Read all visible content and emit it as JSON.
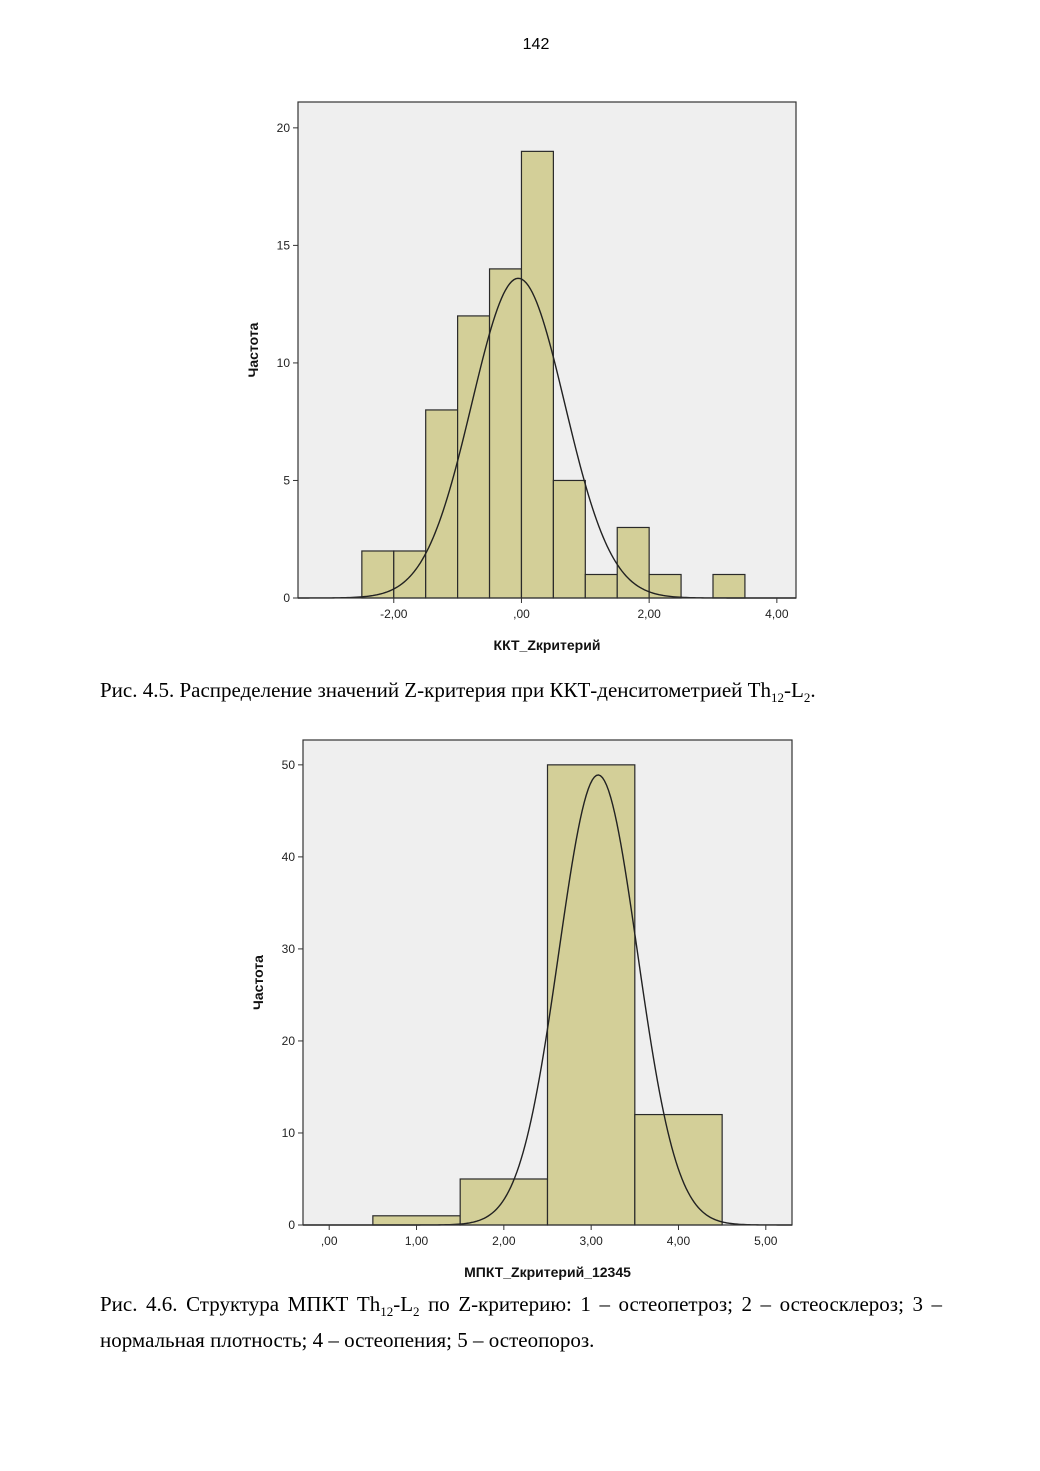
{
  "page_number": "142",
  "captions": {
    "fig45_prefix": "Рис. 4.5. Распределение значений Z-критерия при ККТ-денситометрией Th",
    "fig45_sub1": "12",
    "fig45_mid": "-L",
    "fig45_sub2": "2",
    "fig45_suffix": ".",
    "fig46_prefix": "Рис. 4.6. Структура МПКТ Th",
    "fig46_sub1": "12",
    "fig46_mid": "-L",
    "fig46_sub2": "2",
    "fig46_suffix": " по Z-критерию: 1 – остеопетроз; 2 – остеосклероз; 3 – нормальная плотность; 4 – остеопения; 5 – остеопороз."
  },
  "colors": {
    "bar_fill": "#d3cf98",
    "plot_bg": "#efefef",
    "curve": "#222222"
  },
  "chart_data": [
    {
      "type": "bar",
      "subtype": "histogram",
      "xlabel": "ККТ_Zкритерий",
      "ylabel": "Частота",
      "xlim": [
        -3.5,
        4.3
      ],
      "ylim": [
        0,
        21.1
      ],
      "x_ticks": [
        -2,
        0,
        2,
        4
      ],
      "x_tick_labels": [
        "-2,00",
        ",00",
        "2,00",
        "4,00"
      ],
      "y_ticks": [
        0,
        5,
        10,
        15,
        20
      ],
      "y_tick_labels": [
        "0",
        "5",
        "10",
        "15",
        "20"
      ],
      "bins": [
        {
          "x0": -2.5,
          "x1": -2.0,
          "value": 2
        },
        {
          "x0": -2.0,
          "x1": -1.5,
          "value": 2
        },
        {
          "x0": -1.5,
          "x1": -1.0,
          "value": 8
        },
        {
          "x0": -1.0,
          "x1": -0.5,
          "value": 12
        },
        {
          "x0": -0.5,
          "x1": 0.0,
          "value": 14
        },
        {
          "x0": 0.0,
          "x1": 0.5,
          "value": 19
        },
        {
          "x0": 0.5,
          "x1": 1.0,
          "value": 5
        },
        {
          "x0": 1.0,
          "x1": 1.5,
          "value": 1
        },
        {
          "x0": 1.5,
          "x1": 2.0,
          "value": 3
        },
        {
          "x0": 2.0,
          "x1": 2.5,
          "value": 1
        },
        {
          "x0": 3.0,
          "x1": 3.5,
          "value": 1
        }
      ],
      "normal_curve": {
        "mean": -0.05,
        "sd": 0.73,
        "peak": 13.6
      },
      "grid": false,
      "legend": "none"
    },
    {
      "type": "bar",
      "subtype": "histogram",
      "xlabel": "МПКТ_Zкритерий_12345",
      "ylabel": "Частота",
      "xlim": [
        -0.3,
        5.3
      ],
      "ylim": [
        0,
        52.7
      ],
      "x_ticks": [
        0,
        1,
        2,
        3,
        4,
        5
      ],
      "x_tick_labels": [
        ",00",
        "1,00",
        "2,00",
        "3,00",
        "4,00",
        "5,00"
      ],
      "y_ticks": [
        0,
        10,
        20,
        30,
        40,
        50
      ],
      "y_tick_labels": [
        "0",
        "10",
        "20",
        "30",
        "40",
        "50"
      ],
      "bins": [
        {
          "x0": 0.5,
          "x1": 1.5,
          "value": 1
        },
        {
          "x0": 1.5,
          "x1": 2.5,
          "value": 5
        },
        {
          "x0": 2.5,
          "x1": 3.5,
          "value": 50
        },
        {
          "x0": 3.5,
          "x1": 4.5,
          "value": 12
        }
      ],
      "normal_curve": {
        "mean": 3.08,
        "sd": 0.45,
        "peak": 48.9
      },
      "grid": false,
      "legend": "none"
    }
  ]
}
